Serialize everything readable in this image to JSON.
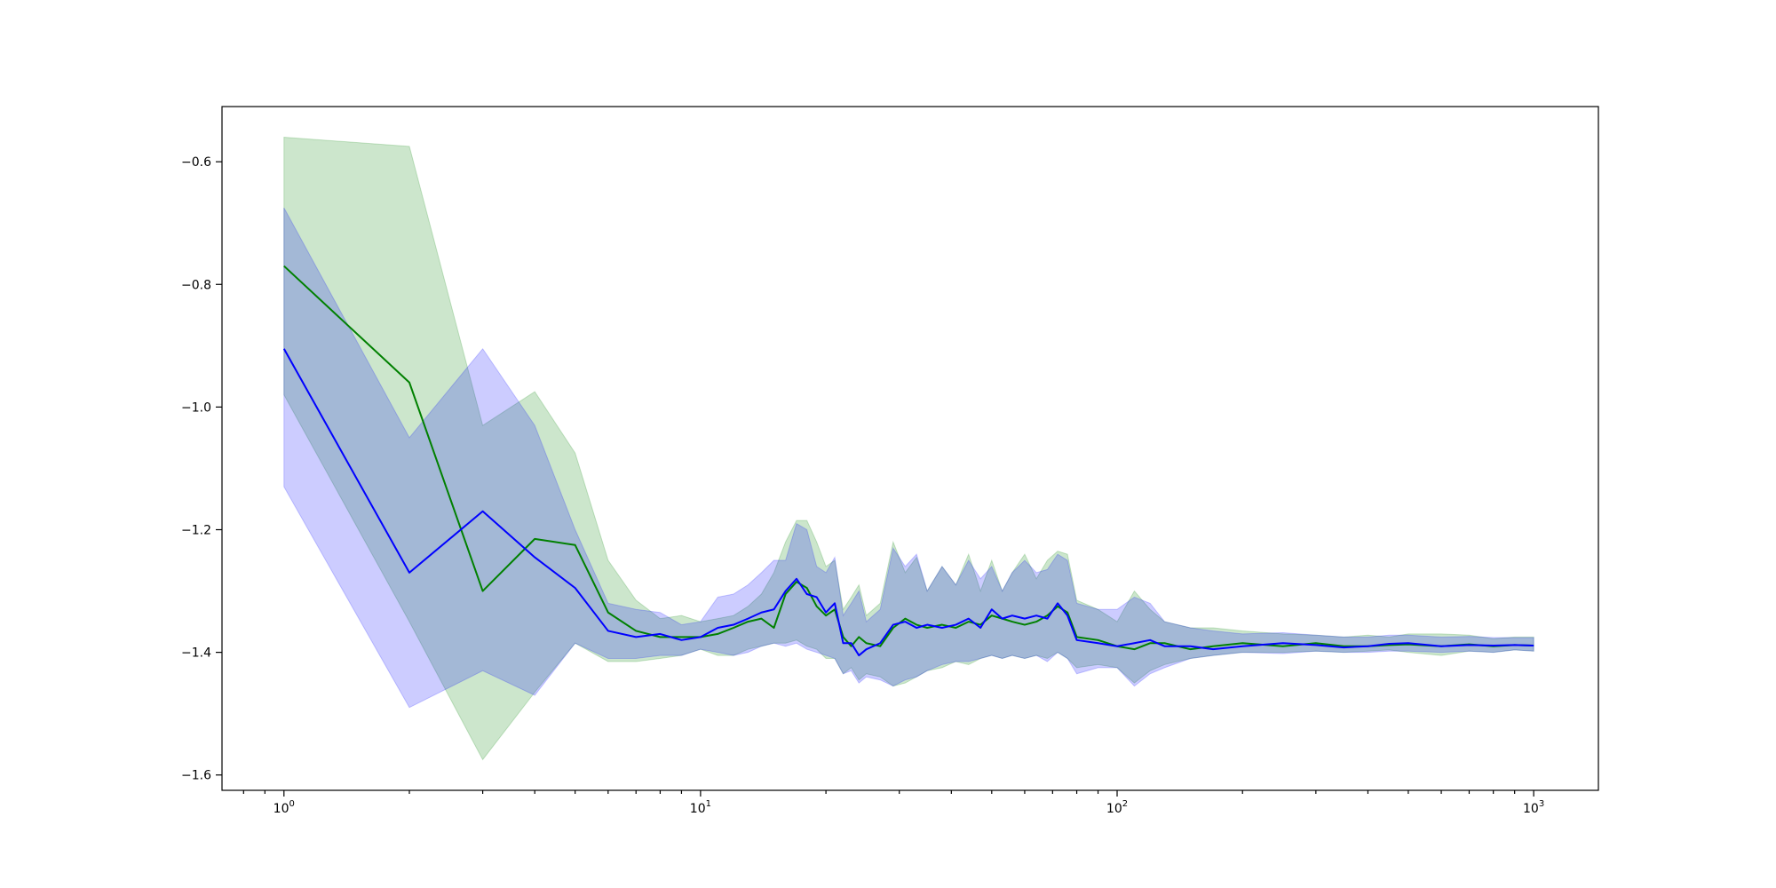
{
  "chart_data": {
    "type": "line",
    "title": "",
    "xlabel": "",
    "ylabel": "",
    "xscale": "log",
    "xlim": [
      0.71,
      1430
    ],
    "ylim": [
      -1.625,
      -0.51
    ],
    "grid": false,
    "legend": "none",
    "x_ticks": [
      {
        "value": 1,
        "base": "10",
        "exp": "0"
      },
      {
        "value": 10,
        "base": "10",
        "exp": "1"
      },
      {
        "value": 100,
        "base": "10",
        "exp": "2"
      },
      {
        "value": 1000,
        "base": "10",
        "exp": "3"
      }
    ],
    "y_ticks": [
      {
        "value": -0.6,
        "label": "−0.6"
      },
      {
        "value": -0.8,
        "label": "−0.8"
      },
      {
        "value": -1.0,
        "label": "−1.0"
      },
      {
        "value": -1.2,
        "label": "−1.2"
      },
      {
        "value": -1.4,
        "label": "−1.4"
      },
      {
        "value": -1.6,
        "label": "−1.6"
      }
    ],
    "series": [
      {
        "color": "#008000",
        "band_color": "#008000",
        "band_opacity": 0.2,
        "x": [
          1,
          2,
          3,
          4,
          5,
          6,
          7,
          8,
          9,
          10,
          11,
          12,
          13,
          14,
          15,
          16,
          17,
          18,
          19,
          20,
          21,
          22,
          23,
          24,
          25,
          27,
          29,
          31,
          33,
          35,
          38,
          41,
          44,
          47,
          50,
          53,
          56,
          60,
          64,
          68,
          72,
          76,
          80,
          90,
          100,
          110,
          120,
          130,
          150,
          170,
          200,
          250,
          300,
          350,
          400,
          450,
          500,
          600,
          700,
          800,
          900,
          1000
        ],
        "y": [
          -0.77,
          -0.96,
          -1.3,
          -1.215,
          -1.225,
          -1.335,
          -1.365,
          -1.375,
          -1.375,
          -1.375,
          -1.37,
          -1.36,
          -1.35,
          -1.345,
          -1.36,
          -1.305,
          -1.285,
          -1.295,
          -1.325,
          -1.34,
          -1.33,
          -1.375,
          -1.39,
          -1.375,
          -1.385,
          -1.39,
          -1.36,
          -1.345,
          -1.355,
          -1.36,
          -1.355,
          -1.36,
          -1.35,
          -1.355,
          -1.34,
          -1.345,
          -1.35,
          -1.355,
          -1.35,
          -1.34,
          -1.325,
          -1.335,
          -1.375,
          -1.38,
          -1.39,
          -1.395,
          -1.385,
          -1.385,
          -1.395,
          -1.39,
          -1.385,
          -1.39,
          -1.385,
          -1.39,
          -1.39,
          -1.388,
          -1.387,
          -1.39,
          -1.387,
          -1.39,
          -1.388,
          -1.389
        ],
        "lower": [
          -0.98,
          -1.35,
          -1.575,
          -1.465,
          -1.385,
          -1.415,
          -1.415,
          -1.41,
          -1.405,
          -1.395,
          -1.405,
          -1.405,
          -1.395,
          -1.39,
          -1.385,
          -1.385,
          -1.38,
          -1.39,
          -1.395,
          -1.41,
          -1.41,
          -1.435,
          -1.425,
          -1.445,
          -1.435,
          -1.44,
          -1.455,
          -1.45,
          -1.44,
          -1.43,
          -1.425,
          -1.415,
          -1.42,
          -1.41,
          -1.405,
          -1.41,
          -1.405,
          -1.41,
          -1.405,
          -1.41,
          -1.4,
          -1.41,
          -1.425,
          -1.42,
          -1.425,
          -1.45,
          -1.43,
          -1.42,
          -1.41,
          -1.405,
          -1.4,
          -1.4,
          -1.398,
          -1.4,
          -1.398,
          -1.396,
          -1.4,
          -1.405,
          -1.398,
          -1.4,
          -1.396,
          -1.398
        ],
        "upper": [
          -0.56,
          -0.575,
          -1.03,
          -0.975,
          -1.075,
          -1.25,
          -1.315,
          -1.345,
          -1.34,
          -1.35,
          -1.345,
          -1.34,
          -1.325,
          -1.305,
          -1.27,
          -1.22,
          -1.185,
          -1.185,
          -1.22,
          -1.26,
          -1.25,
          -1.33,
          -1.31,
          -1.29,
          -1.34,
          -1.32,
          -1.22,
          -1.27,
          -1.245,
          -1.3,
          -1.26,
          -1.29,
          -1.24,
          -1.3,
          -1.25,
          -1.3,
          -1.27,
          -1.24,
          -1.28,
          -1.25,
          -1.235,
          -1.24,
          -1.315,
          -1.33,
          -1.35,
          -1.3,
          -1.33,
          -1.35,
          -1.36,
          -1.36,
          -1.365,
          -1.37,
          -1.372,
          -1.375,
          -1.372,
          -1.375,
          -1.37,
          -1.37,
          -1.372,
          -1.378,
          -1.375,
          -1.375
        ]
      },
      {
        "color": "#0000ff",
        "band_color": "#0000ff",
        "band_opacity": 0.2,
        "x": [
          1,
          2,
          3,
          4,
          5,
          6,
          7,
          8,
          9,
          10,
          11,
          12,
          13,
          14,
          15,
          16,
          17,
          18,
          19,
          20,
          21,
          22,
          23,
          24,
          25,
          27,
          29,
          31,
          33,
          35,
          38,
          41,
          44,
          47,
          50,
          53,
          56,
          60,
          64,
          68,
          72,
          76,
          80,
          90,
          100,
          110,
          120,
          130,
          150,
          170,
          200,
          250,
          300,
          350,
          400,
          450,
          500,
          600,
          700,
          800,
          900,
          1000
        ],
        "y": [
          -0.905,
          -1.27,
          -1.17,
          -1.245,
          -1.295,
          -1.365,
          -1.375,
          -1.37,
          -1.38,
          -1.375,
          -1.36,
          -1.355,
          -1.345,
          -1.335,
          -1.33,
          -1.3,
          -1.28,
          -1.305,
          -1.31,
          -1.335,
          -1.32,
          -1.385,
          -1.385,
          -1.405,
          -1.395,
          -1.385,
          -1.355,
          -1.35,
          -1.36,
          -1.355,
          -1.36,
          -1.355,
          -1.345,
          -1.36,
          -1.33,
          -1.345,
          -1.34,
          -1.345,
          -1.34,
          -1.345,
          -1.32,
          -1.34,
          -1.38,
          -1.385,
          -1.39,
          -1.385,
          -1.38,
          -1.39,
          -1.39,
          -1.395,
          -1.39,
          -1.385,
          -1.388,
          -1.392,
          -1.39,
          -1.386,
          -1.385,
          -1.39,
          -1.388,
          -1.389,
          -1.388,
          -1.389
        ],
        "lower": [
          -1.13,
          -1.49,
          -1.43,
          -1.47,
          -1.385,
          -1.41,
          -1.41,
          -1.405,
          -1.405,
          -1.395,
          -1.4,
          -1.405,
          -1.4,
          -1.39,
          -1.385,
          -1.39,
          -1.385,
          -1.395,
          -1.4,
          -1.405,
          -1.41,
          -1.435,
          -1.43,
          -1.45,
          -1.44,
          -1.445,
          -1.455,
          -1.445,
          -1.44,
          -1.43,
          -1.42,
          -1.415,
          -1.415,
          -1.41,
          -1.405,
          -1.41,
          -1.405,
          -1.41,
          -1.405,
          -1.415,
          -1.4,
          -1.41,
          -1.435,
          -1.425,
          -1.425,
          -1.455,
          -1.435,
          -1.425,
          -1.41,
          -1.405,
          -1.4,
          -1.402,
          -1.398,
          -1.4,
          -1.4,
          -1.398,
          -1.398,
          -1.4,
          -1.398,
          -1.4,
          -1.396,
          -1.398
        ],
        "upper": [
          -0.675,
          -1.05,
          -0.905,
          -1.03,
          -1.2,
          -1.32,
          -1.33,
          -1.335,
          -1.355,
          -1.35,
          -1.31,
          -1.305,
          -1.29,
          -1.27,
          -1.25,
          -1.25,
          -1.19,
          -1.2,
          -1.26,
          -1.27,
          -1.245,
          -1.34,
          -1.32,
          -1.3,
          -1.35,
          -1.33,
          -1.23,
          -1.26,
          -1.24,
          -1.3,
          -1.26,
          -1.29,
          -1.25,
          -1.28,
          -1.26,
          -1.3,
          -1.27,
          -1.25,
          -1.27,
          -1.265,
          -1.24,
          -1.25,
          -1.32,
          -1.33,
          -1.33,
          -1.31,
          -1.32,
          -1.35,
          -1.36,
          -1.365,
          -1.37,
          -1.368,
          -1.372,
          -1.375,
          -1.375,
          -1.372,
          -1.372,
          -1.375,
          -1.374,
          -1.376,
          -1.376,
          -1.376
        ]
      }
    ]
  }
}
